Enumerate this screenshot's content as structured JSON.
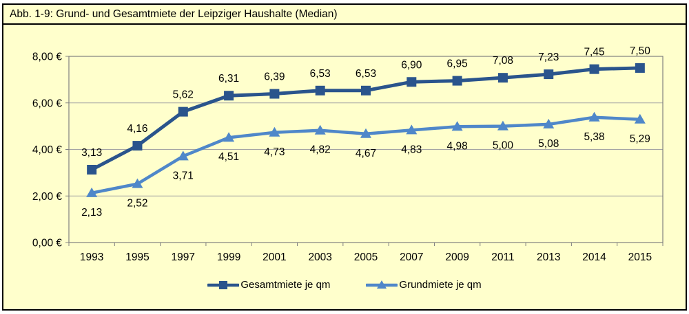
{
  "figure": {
    "title": "Abb. 1-9: Grund- und Gesamtmiete der Leipziger Haushalte (Median)",
    "background_color": "#FFFFCC",
    "border_color": "#000000"
  },
  "chart_data": {
    "type": "line",
    "title": "Abb. 1-9: Grund- und Gesamtmiete der Leipziger Haushalte (Median)",
    "categories": [
      "1993",
      "1995",
      "1997",
      "1999",
      "2001",
      "2003",
      "2005",
      "2007",
      "2009",
      "2011",
      "2013",
      "2014",
      "2015"
    ],
    "series": [
      {
        "name": "Gesamtmiete je qm",
        "marker": "square",
        "color": "#2A548C",
        "label_position": "above",
        "values": [
          3.13,
          4.16,
          5.62,
          6.31,
          6.39,
          6.53,
          6.53,
          6.9,
          6.95,
          7.08,
          7.23,
          7.45,
          7.5
        ],
        "labels": [
          "3,13",
          "4,16",
          "5,62",
          "6,31",
          "6,39",
          "6,53",
          "6,53",
          "6,90",
          "6,95",
          "7,08",
          "7,23",
          "7,45",
          "7,50"
        ]
      },
      {
        "name": "Grundmiete je qm",
        "marker": "triangle-up",
        "color": "#4F87C9",
        "label_position": "below",
        "values": [
          2.13,
          2.52,
          3.71,
          4.51,
          4.73,
          4.82,
          4.67,
          4.83,
          4.98,
          5.0,
          5.08,
          5.38,
          5.29
        ],
        "labels": [
          "2,13",
          "2,52",
          "3,71",
          "4,51",
          "4,73",
          "4,82",
          "4,67",
          "4,83",
          "4,98",
          "5,00",
          "5,08",
          "5,38",
          "5,29"
        ]
      }
    ],
    "y_axis": {
      "range": [
        0,
        8
      ],
      "ticks": [
        {
          "value": 0,
          "label": "0,00 €"
        },
        {
          "value": 2,
          "label": "2,00 €"
        },
        {
          "value": 4,
          "label": "4,00 €"
        },
        {
          "value": 6,
          "label": "6,00 €"
        },
        {
          "value": 8,
          "label": "8,00 €"
        }
      ]
    },
    "xlabel": "",
    "ylabel": "",
    "grid": true,
    "legend_position": "bottom",
    "colors": {
      "gridline": "#A3A3A3",
      "plot_border": "#808080",
      "text": "#000000"
    }
  }
}
